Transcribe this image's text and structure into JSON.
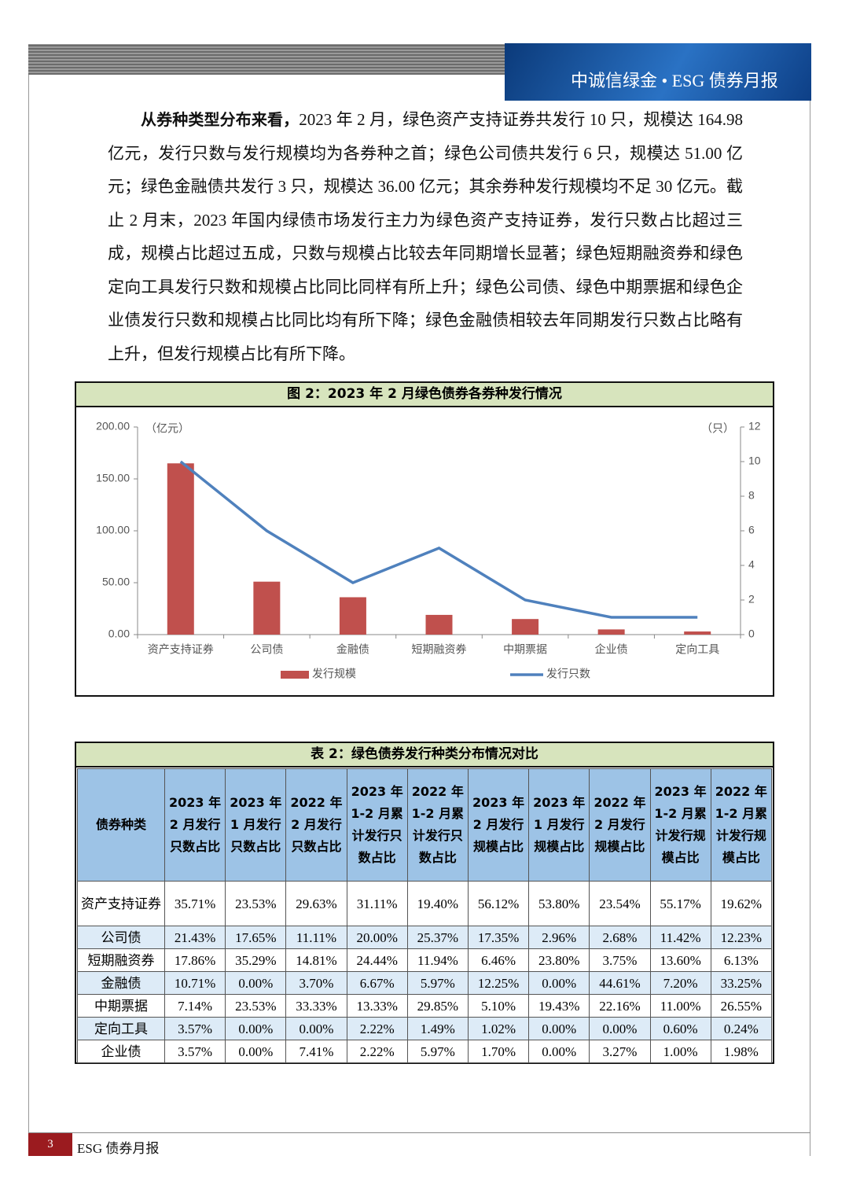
{
  "header": {
    "brand": "中诚信绿金 • ESG 债券月报"
  },
  "paragraph": {
    "lead": "从券种类型分布来看，",
    "body": "2023 年 2 月，绿色资产支持证券共发行 10 只，规模达 164.98 亿元，发行只数与发行规模均为各券种之首；绿色公司债共发行 6 只，规模达 51.00 亿元；绿色金融债共发行 3 只，规模达 36.00 亿元；其余券种发行规模均不足 30 亿元。截止 2 月末，2023 年国内绿债市场发行主力为绿色资产支持证券，发行只数占比超过三成，规模占比超过五成，只数与规模占比较去年同期增长显著；绿色短期融资券和绿色定向工具发行只数和规模占比同比同样有所上升；绿色公司债、绿色中期票据和绿色企业债发行只数和规模占比同比均有所下降；绿色金融债相较去年同期发行只数占比略有上升，但发行规模占比有所下降。"
  },
  "chart_data": {
    "type": "combo",
    "title": "图 2：2023 年 2 月绿色债券各券种发行情况",
    "y_label": "（亿元）",
    "y2_label": "（只）",
    "categories": [
      "资产支持证券",
      "公司债",
      "金融债",
      "短期融资券",
      "中期票据",
      "企业债",
      "定向工具"
    ],
    "series": [
      {
        "name": "发行规模",
        "type": "bar",
        "color": "#c0504d",
        "values": [
          164.98,
          51.0,
          36.0,
          19.0,
          15.0,
          5.0,
          3.0
        ]
      },
      {
        "name": "发行只数",
        "type": "line",
        "color": "#4f81bd",
        "axis": "y2",
        "values": [
          10,
          6,
          3,
          5,
          2,
          1,
          1
        ]
      }
    ],
    "ylim": [
      0,
      200
    ],
    "yticks": [
      {
        "value": 0,
        "label": "0.00"
      },
      {
        "value": 50,
        "label": "50.00"
      },
      {
        "value": 100,
        "label": "100.00"
      },
      {
        "value": 150,
        "label": "150.00"
      },
      {
        "value": 200,
        "label": "200.00"
      }
    ],
    "y2lim": [
      0,
      12
    ],
    "y2ticks": [
      0,
      2,
      4,
      6,
      8,
      10,
      12
    ],
    "legend": "bottom"
  },
  "table": {
    "title": "表 2：绿色债券发行种类分布情况对比",
    "header": [
      "债券种类",
      "2023 年 2 月发行只数占比",
      "2023 年 1 月发行只数占比",
      "2022 年 2 月发行只数占比",
      "2023 年 1-2 月累计发行只数占比",
      "2022 年 1-2 月累计发行只数占比",
      "2023 年 2 月发行规模占比",
      "2023 年 1 月发行规模占比",
      "2022 年 2 月发行规模占比",
      "2023 年 1-2 月累计发行规模占比",
      "2022 年 1-2 月累计发行规模占比"
    ],
    "rows": [
      [
        "资产支持证券",
        "35.71%",
        "23.53%",
        "29.63%",
        "31.11%",
        "19.40%",
        "56.12%",
        "53.80%",
        "23.54%",
        "55.17%",
        "19.62%"
      ],
      [
        "公司债",
        "21.43%",
        "17.65%",
        "11.11%",
        "20.00%",
        "25.37%",
        "17.35%",
        "2.96%",
        "2.68%",
        "11.42%",
        "12.23%"
      ],
      [
        "短期融资券",
        "17.86%",
        "35.29%",
        "14.81%",
        "24.44%",
        "11.94%",
        "6.46%",
        "23.80%",
        "3.75%",
        "13.60%",
        "6.13%"
      ],
      [
        "金融债",
        "10.71%",
        "0.00%",
        "3.70%",
        "6.67%",
        "5.97%",
        "12.25%",
        "0.00%",
        "44.61%",
        "7.20%",
        "33.25%"
      ],
      [
        "中期票据",
        "7.14%",
        "23.53%",
        "33.33%",
        "13.33%",
        "29.85%",
        "5.10%",
        "19.43%",
        "22.16%",
        "11.00%",
        "26.55%"
      ],
      [
        "定向工具",
        "3.57%",
        "0.00%",
        "0.00%",
        "2.22%",
        "1.49%",
        "1.02%",
        "0.00%",
        "0.00%",
        "0.60%",
        "0.24%"
      ],
      [
        "企业债",
        "3.57%",
        "0.00%",
        "7.41%",
        "2.22%",
        "5.97%",
        "1.70%",
        "0.00%",
        "3.27%",
        "1.00%",
        "1.98%"
      ]
    ]
  },
  "footer": {
    "page": "3",
    "title": "ESG 债券月报"
  }
}
